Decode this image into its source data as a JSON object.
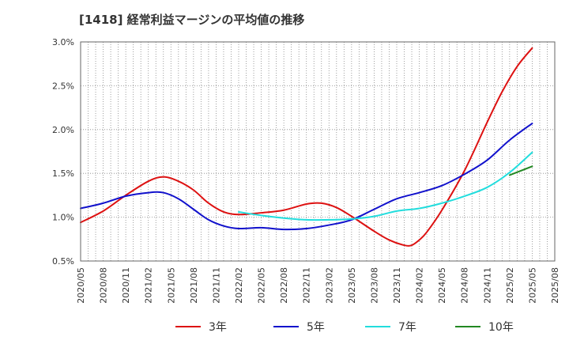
{
  "chart_data": {
    "type": "line",
    "title": "[1418]  経常利益マージンの平均値の推移",
    "xlabel": "",
    "ylabel": "",
    "x_ticks": [
      "2020/05",
      "2020/08",
      "2020/11",
      "2021/02",
      "2021/05",
      "2021/08",
      "2021/11",
      "2022/02",
      "2022/05",
      "2022/08",
      "2022/11",
      "2023/02",
      "2023/05",
      "2023/08",
      "2023/11",
      "2024/02",
      "2024/05",
      "2024/08",
      "2024/11",
      "2025/02",
      "2025/05",
      "2025/08"
    ],
    "ylim": [
      0.5,
      3.0
    ],
    "y_ticks": [
      "0.5%",
      "1.0%",
      "1.5%",
      "2.0%",
      "2.5%",
      "3.0%"
    ],
    "grid": true,
    "legend_position": "bottom",
    "series": [
      {
        "name": "3年",
        "color": "#dd1111",
        "x": [
          "2020/05",
          "2020/08",
          "2020/11",
          "2021/02",
          "2021/04",
          "2021/06",
          "2021/08",
          "2021/10",
          "2021/12",
          "2022/02",
          "2022/05",
          "2022/08",
          "2022/11",
          "2023/01",
          "2023/03",
          "2023/05",
          "2023/08",
          "2023/10",
          "2023/12",
          "2024/01",
          "2024/02",
          "2024/03",
          "2024/05",
          "2024/08",
          "2024/11",
          "2025/01",
          "2025/03",
          "2025/05"
        ],
        "values": [
          0.94,
          1.07,
          1.25,
          1.41,
          1.46,
          1.41,
          1.31,
          1.16,
          1.06,
          1.03,
          1.05,
          1.08,
          1.15,
          1.16,
          1.11,
          1.01,
          0.84,
          0.74,
          0.68,
          0.68,
          0.74,
          0.83,
          1.08,
          1.53,
          2.08,
          2.43,
          2.72,
          2.93
        ]
      },
      {
        "name": "5年",
        "color": "#1111cc",
        "x": [
          "2020/05",
          "2020/08",
          "2020/11",
          "2021/02",
          "2021/04",
          "2021/06",
          "2021/08",
          "2021/10",
          "2021/12",
          "2022/02",
          "2022/05",
          "2022/08",
          "2022/11",
          "2023/02",
          "2023/05",
          "2023/08",
          "2023/11",
          "2024/02",
          "2024/05",
          "2024/08",
          "2024/11",
          "2025/02",
          "2025/05"
        ],
        "values": [
          1.1,
          1.16,
          1.24,
          1.28,
          1.28,
          1.21,
          1.09,
          0.97,
          0.9,
          0.87,
          0.88,
          0.86,
          0.87,
          0.91,
          0.97,
          1.09,
          1.21,
          1.28,
          1.36,
          1.49,
          1.65,
          1.88,
          2.07
        ]
      },
      {
        "name": "7年",
        "color": "#22dddd",
        "x": [
          "2022/02",
          "2022/05",
          "2022/08",
          "2022/11",
          "2023/02",
          "2023/05",
          "2023/08",
          "2023/11",
          "2024/02",
          "2024/05",
          "2024/08",
          "2024/11",
          "2025/02",
          "2025/05"
        ],
        "values": [
          1.06,
          1.02,
          0.99,
          0.97,
          0.97,
          0.98,
          1.01,
          1.07,
          1.1,
          1.16,
          1.24,
          1.34,
          1.51,
          1.74
        ]
      },
      {
        "name": "10年",
        "color": "#228822",
        "x": [
          "2025/02",
          "2025/05"
        ],
        "values": [
          1.48,
          1.58
        ]
      }
    ]
  }
}
